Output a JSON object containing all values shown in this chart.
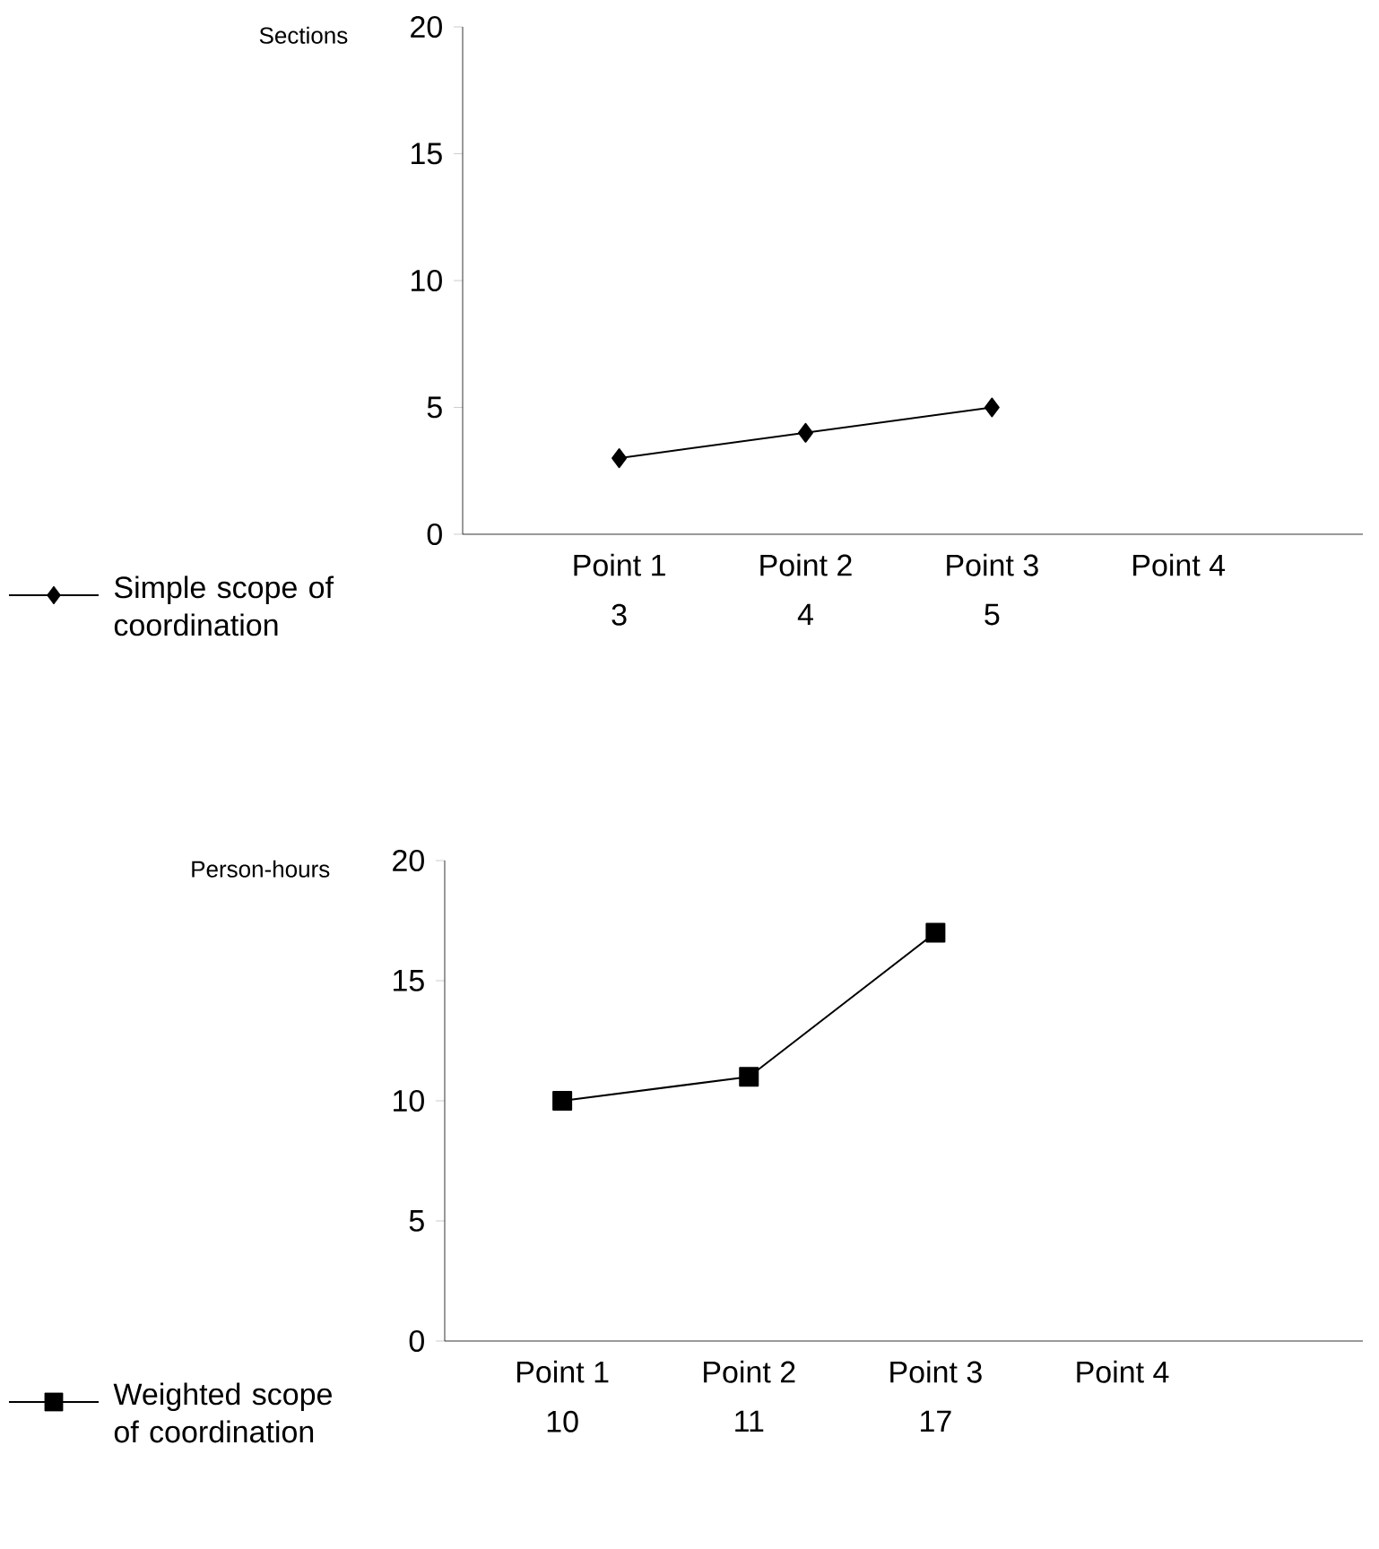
{
  "chart_data": [
    {
      "type": "line",
      "ylabel": "Sections",
      "categories": [
        "Point 1",
        "Point 2",
        "Point 3",
        "Point 4"
      ],
      "series": [
        {
          "name": "Simple scope of coordination",
          "color": "#000000",
          "values": [
            3,
            4,
            5,
            null
          ]
        }
      ],
      "ylim": [
        0,
        20
      ],
      "yticks": [
        0,
        5,
        10,
        15,
        20
      ],
      "marker": "diamond",
      "data_labels": true,
      "legend": "bottom left"
    },
    {
      "type": "line",
      "ylabel": "Person-hours",
      "categories": [
        "Point 1",
        "Point 2",
        "Point 3",
        "Point 4"
      ],
      "series": [
        {
          "name": "Weighted scope of coordination",
          "color": "#000000",
          "values": [
            10,
            11,
            17,
            null
          ]
        }
      ],
      "ylim": [
        0,
        20
      ],
      "yticks": [
        0,
        5,
        10,
        15,
        20
      ],
      "marker": "square",
      "data_labels": true,
      "legend": "bottom left"
    }
  ]
}
